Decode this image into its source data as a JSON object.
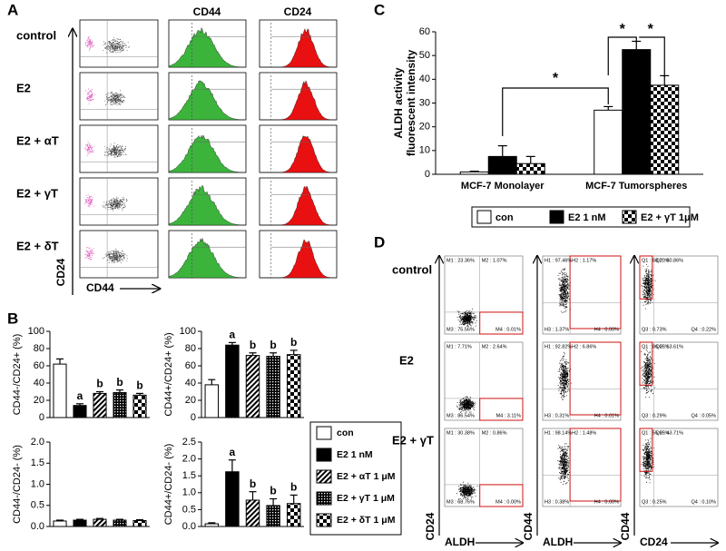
{
  "figure": {
    "panel_labels": [
      "A",
      "B",
      "C",
      "D"
    ]
  },
  "panel_a": {
    "row_labels": [
      "control",
      "E2",
      "E2 + αT",
      "E2 + γT",
      "E2 + δT"
    ],
    "column_headers": [
      "CD44",
      "CD24"
    ],
    "y_axis_label": "CD24",
    "x_axis_label": "CD44"
  },
  "panel_b_legend": {
    "entries": [
      {
        "name": "con",
        "pattern": "white"
      },
      {
        "name": "E2 1 nM",
        "pattern": "black"
      },
      {
        "name": "E2 + αT 1 μM",
        "pattern": "stripes"
      },
      {
        "name": "E2 + γT 1 μM",
        "pattern": "dots"
      },
      {
        "name": "E2 + δT 1 μM",
        "pattern": "checker"
      }
    ]
  },
  "chart_data": [
    {
      "type": "bar",
      "y_label": "CD44-/CD24+ (%)",
      "ylim": [
        0,
        100
      ],
      "yticks": [
        0,
        20,
        40,
        60,
        80,
        100
      ],
      "values": [
        62,
        14,
        28,
        29,
        26
      ],
      "errors": [
        6,
        2,
        2,
        3,
        2
      ],
      "annotations": [
        null,
        "a",
        "b",
        "b",
        "b"
      ]
    },
    {
      "type": "bar",
      "y_label": "CD44+/CD24+ (%)",
      "ylim": [
        0,
        100
      ],
      "yticks": [
        0,
        20,
        40,
        60,
        80,
        100
      ],
      "values": [
        38,
        84,
        72,
        71,
        73
      ],
      "errors": [
        6,
        3,
        3,
        4,
        5
      ],
      "annotations": [
        null,
        "a",
        "b",
        "b",
        "b"
      ]
    },
    {
      "type": "bar",
      "y_label": "CD44-/CD24- (%)",
      "ylim": [
        0,
        2
      ],
      "yticks": [
        {
          "value": 0,
          "label": "0.0"
        },
        0.5,
        {
          "value": 1,
          "label": "1.0"
        },
        1.5,
        {
          "value": 2,
          "label": "2.0"
        }
      ],
      "values": [
        0.13,
        0.15,
        0.17,
        0.15,
        0.14
      ],
      "errors": [
        0.02,
        0.02,
        0.02,
        0.02,
        0.02
      ]
    },
    {
      "type": "bar",
      "y_label": "CD44+/CD24- (%)",
      "ylim": [
        0,
        2.5
      ],
      "yticks": [
        {
          "value": 0,
          "label": "0.0"
        },
        0.5,
        {
          "value": 1,
          "label": "1.0"
        },
        1.5,
        {
          "value": 2,
          "label": "2.0"
        },
        2.5
      ],
      "values": [
        0.08,
        1.62,
        0.78,
        0.62,
        0.68
      ],
      "errors": [
        0.03,
        0.35,
        0.25,
        0.2,
        0.25
      ],
      "annotations": [
        null,
        "a",
        "b",
        "b",
        "b"
      ]
    },
    {
      "type": "grouped-bar",
      "y_label": [
        "ALDH activity",
        "fluorescent intensity"
      ],
      "ylim": [
        0,
        60
      ],
      "yticks": [
        0,
        10,
        20,
        30,
        40,
        50,
        60
      ],
      "categories": [
        "MCF-7 Monolayer",
        "MCF-7 Tumorspheres"
      ],
      "series": [
        {
          "name": "con",
          "pattern": "white",
          "values": [
            1,
            27
          ],
          "errors": [
            0.3,
            1.5
          ]
        },
        {
          "name": "E2 1 nM",
          "pattern": "black",
          "values": [
            7.5,
            52.5
          ],
          "errors": [
            4.5,
            3.5
          ]
        },
        {
          "name": "E2 + γT 1μM",
          "pattern": "checker",
          "values": [
            4.5,
            37.5
          ],
          "errors": [
            3,
            4
          ]
        }
      ],
      "significance": [
        "*",
        "*",
        "*"
      ]
    }
  ],
  "panel_d": {
    "row_labels": [
      "control",
      "E2",
      "E2 + γT"
    ],
    "x_axis_labels": [
      "ALDH",
      "ALDH",
      "CD24"
    ],
    "y_axis_labels": [
      "CD24",
      "CD44",
      "CD44"
    ],
    "gates": [
      [
        [
          "M1 : 23.36%",
          "M2 : 1.07%",
          "M3 : 75.56%",
          "M4 : 0.01%"
        ],
        [
          "H1 : 97.46%",
          "H2 : 1.17%",
          "H3 : 1.37%",
          "H4 : 0.00%"
        ],
        [
          "Q1 : 68.20%",
          "Q2 : 30.86%",
          "Q3 : 0.73%",
          "Q4 : 0.22%"
        ]
      ],
      [
        [
          "M1 : 7.71%",
          "M2 : 2.64%",
          "M3 : 86.54%",
          "M4 : 3.11%"
        ],
        [
          "H1 : 92.82%",
          "H2 : 6.86%",
          "H3 : 0.31%",
          "H4 : 0.01%"
        ],
        [
          "Q1 : 86.05%",
          "Q2 : 13.61%",
          "Q3 : 0.29%",
          "Q4 : 0.05%"
        ]
      ],
      [
        [
          "M1 : 30.38%",
          "M2 : 0.86%",
          "M3 : 68.76%",
          "M4 : 0.00%"
        ],
        [
          "H1 : 98.14%",
          "H2 : 1.48%",
          "H3 : 0.38%",
          "H4 : 0.00%"
        ],
        [
          "Q1 : 55.95%",
          "Q2 : 43.71%",
          "Q3 : 0.25%",
          "Q4 : 0.10%"
        ]
      ]
    ]
  }
}
